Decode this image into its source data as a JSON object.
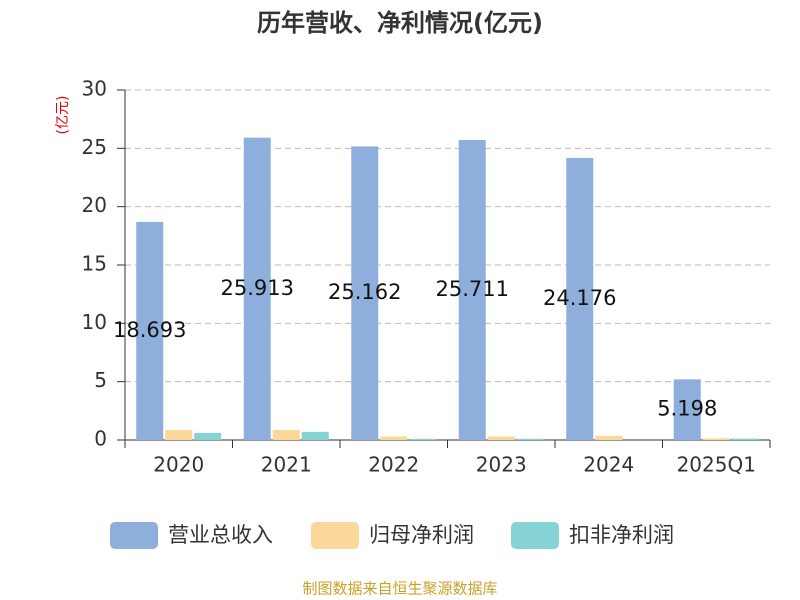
{
  "chart_data": {
    "type": "bar",
    "title": "历年营收、净利情况(亿元)",
    "y_label": "(亿元)",
    "source": "制图数据来自恒生聚源数据库",
    "categories": [
      "2020",
      "2021",
      "2022",
      "2023",
      "2024",
      "2025Q1"
    ],
    "series": [
      {
        "name": "营业总收入",
        "color": "#8eaedb",
        "values": [
          18.693,
          25.913,
          25.162,
          25.711,
          24.176,
          5.198
        ],
        "show_labels": true
      },
      {
        "name": "归母净利润",
        "color": "#fbd89a",
        "values": [
          0.85,
          0.85,
          0.3,
          0.3,
          0.35,
          0.15
        ]
      },
      {
        "name": "扣非净利润",
        "color": "#86d3d6",
        "values": [
          0.6,
          0.7,
          0.1,
          0.1,
          0,
          0.12
        ]
      }
    ],
    "ylim": [
      0,
      30
    ],
    "yticks": [
      0,
      5,
      10,
      15,
      20,
      25,
      30
    ],
    "grid": true,
    "legend": "bottom"
  }
}
